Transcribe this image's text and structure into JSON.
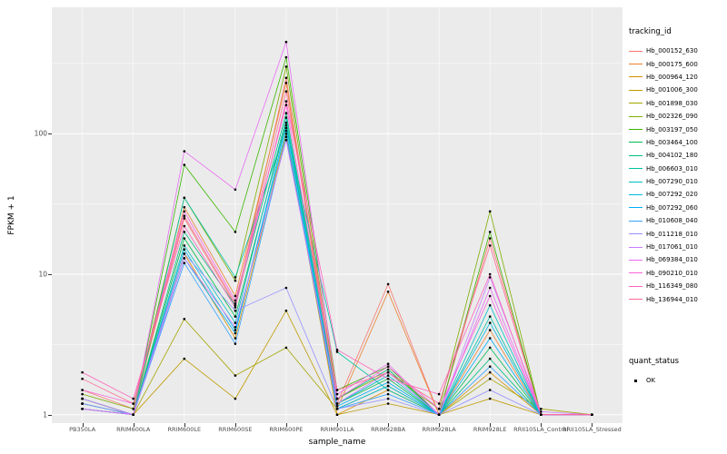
{
  "legend": {
    "tracking_title": "tracking_id",
    "quant_title": "quant_status"
  },
  "chart_data": {
    "type": "line",
    "title": "",
    "xlabel": "sample_name",
    "ylabel": "FPKM + 1",
    "y_scale": "log10",
    "y_ticks": [
      1,
      10,
      100
    ],
    "minor_gridlines": [
      3.162,
      31.62,
      316.23
    ],
    "log_ylim": [
      -0.06,
      2.9
    ],
    "legend_title": "tracking_id",
    "legend_position": "right",
    "grid": "on",
    "colors": {
      "panel_bg": "#EBEBEB",
      "grid": "#FFFFFF",
      "point": "#000000"
    },
    "quant_legend": {
      "title": "quant_status",
      "items": [
        {
          "label": "OK"
        }
      ]
    },
    "categories": [
      "PB350LA",
      "RRIM600LA",
      "RRIM600LE",
      "RRIM600SE",
      "RRIM600PE",
      "RRIM901LA",
      "RRIM928BA",
      "RRIM928LA",
      "RRIM928LE",
      "RRII105LA_Control",
      "RRII105LA_Stressed"
    ],
    "series": [
      {
        "name": "Hb_000152_630",
        "color": "#F8766D",
        "values": [
          1.5,
          1.1,
          25,
          6,
          250,
          1.2,
          8.5,
          1.0,
          18,
          1.0,
          1.0
        ]
      },
      {
        "name": "Hb_000175_600",
        "color": "#EA8331",
        "values": [
          1.3,
          1.0,
          30,
          7,
          230,
          1.1,
          7.5,
          1.0,
          4,
          1.0,
          1.0
        ]
      },
      {
        "name": "Hb_000964_120",
        "color": "#D89000",
        "values": [
          1.2,
          1.0,
          14,
          3.5,
          100,
          1.0,
          1.5,
          1.0,
          2,
          1.0,
          1.0
        ]
      },
      {
        "name": "Hb_001006_300",
        "color": "#C09B00",
        "values": [
          1.1,
          1.0,
          2.5,
          1.3,
          5.5,
          1.0,
          1.2,
          1.0,
          1.3,
          1.0,
          1.0
        ]
      },
      {
        "name": "Hb_001898_030",
        "color": "#A3A500",
        "values": [
          1.2,
          1.0,
          4.8,
          1.9,
          3.0,
          1.1,
          1.6,
          1.0,
          1.8,
          1.1,
          1.0
        ]
      },
      {
        "name": "Hb_002326_090",
        "color": "#7CAE00",
        "values": [
          1.4,
          1.1,
          35,
          9,
          300,
          1.3,
          2.0,
          1.1,
          28,
          1.0,
          1.0
        ]
      },
      {
        "name": "Hb_003197_050",
        "color": "#39B600",
        "values": [
          1.3,
          1.0,
          60,
          20,
          350,
          1.5,
          2.2,
          1.0,
          20,
          1.0,
          1.0
        ]
      },
      {
        "name": "Hb_003464_100",
        "color": "#00BB4E",
        "values": [
          1.2,
          1.0,
          18,
          5,
          120,
          1.2,
          1.8,
          1.0,
          3,
          1.0,
          1.0
        ]
      },
      {
        "name": "Hb_004102_180",
        "color": "#00BF7D",
        "values": [
          1.1,
          1.0,
          20,
          6,
          140,
          1.3,
          2.1,
          1.0,
          2.5,
          1.0,
          1.0
        ]
      },
      {
        "name": "Hb_006603_010",
        "color": "#00C1A3",
        "values": [
          1.2,
          1.0,
          35,
          9.5,
          110,
          2.8,
          1.5,
          1.0,
          5,
          1.0,
          1.0
        ]
      },
      {
        "name": "Hb_007290_010",
        "color": "#00BFC4",
        "values": [
          1.3,
          1.0,
          16,
          4.5,
          130,
          1.2,
          1.9,
          1.0,
          6,
          1.0,
          1.0
        ]
      },
      {
        "name": "Hb_007292_020",
        "color": "#00BAE0",
        "values": [
          1.1,
          1.0,
          15,
          4,
          105,
          1.1,
          1.6,
          1.0,
          4.5,
          1.0,
          1.0
        ]
      },
      {
        "name": "Hb_007292_060",
        "color": "#00B0F6",
        "values": [
          1.2,
          1.0,
          13,
          3.8,
          115,
          1.15,
          1.7,
          1.0,
          3.5,
          1.0,
          1.0
        ]
      },
      {
        "name": "Hb_010608_040",
        "color": "#35A2FF",
        "values": [
          1.1,
          1.0,
          12,
          3.2,
          95,
          1.1,
          1.4,
          1.0,
          2.2,
          1.0,
          1.0
        ]
      },
      {
        "name": "Hb_011218_010",
        "color": "#9590FF",
        "values": [
          1.2,
          1.0,
          14,
          5.5,
          8,
          1.1,
          1.3,
          1.0,
          1.5,
          1.0,
          1.0
        ]
      },
      {
        "name": "Hb_017061_010",
        "color": "#C77CFF",
        "values": [
          1.3,
          1.0,
          13,
          4.2,
          90,
          1.2,
          2.0,
          1.0,
          9.5,
          1.05,
          1.0
        ]
      },
      {
        "name": "Hb_069384_010",
        "color": "#E76BF3",
        "values": [
          1.1,
          1.0,
          75,
          40,
          450,
          1.4,
          2.3,
          1.0,
          8,
          1.0,
          1.0
        ]
      },
      {
        "name": "Hb_090210_010",
        "color": "#FA62DB",
        "values": [
          1.5,
          1.2,
          28,
          6.5,
          160,
          1.3,
          2.2,
          1.1,
          7,
          1.0,
          1.0
        ]
      },
      {
        "name": "Hb_116349_080",
        "color": "#FF62BC",
        "values": [
          2.0,
          1.3,
          22,
          5.8,
          170,
          2.9,
          1.8,
          1.4,
          10,
          1.0,
          1.0
        ]
      },
      {
        "name": "Hb_136944_010",
        "color": "#FF6A98",
        "values": [
          1.8,
          1.2,
          26,
          6.2,
          200,
          1.5,
          2.0,
          1.2,
          16,
          1.0,
          1.0
        ]
      }
    ]
  }
}
